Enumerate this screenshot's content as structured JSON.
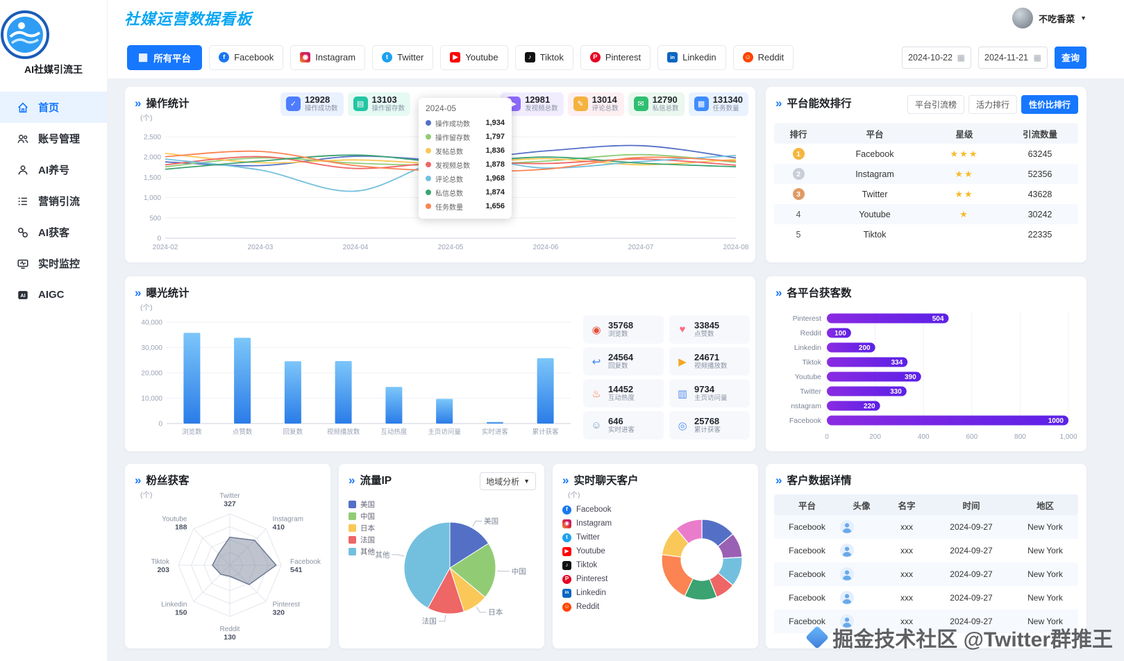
{
  "app": {
    "logo_text": "AI社媒引流王",
    "title": "社媒运营数据看板",
    "user_name": "不吃香菜"
  },
  "sidebar": {
    "items": [
      {
        "label": "首页",
        "icon": "home-icon",
        "active": true
      },
      {
        "label": "账号管理",
        "icon": "users-icon",
        "active": false
      },
      {
        "label": "AI养号",
        "icon": "user-icon",
        "active": false
      },
      {
        "label": "营销引流",
        "icon": "list-icon",
        "active": false
      },
      {
        "label": "AI获客",
        "icon": "link-icon",
        "active": false
      },
      {
        "label": "实时监控",
        "icon": "monitor-icon",
        "active": false
      },
      {
        "label": "AIGC",
        "icon": "aigc-icon",
        "active": false
      }
    ]
  },
  "filters": {
    "all_label": "所有平台",
    "platforms": [
      {
        "name": "Facebook",
        "color": "#1877f2",
        "glyph": "f",
        "shape": "circle"
      },
      {
        "name": "Instagram",
        "color": "#dc2743",
        "gradient": "linear-gradient(45deg,#f09433,#dc2743,#bc1888)",
        "glyph": "◉",
        "shape": "square"
      },
      {
        "name": "Twitter",
        "color": "#1da1f2",
        "glyph": "t",
        "shape": "circle"
      },
      {
        "name": "Youtube",
        "color": "#ff0000",
        "glyph": "▶",
        "shape": "square"
      },
      {
        "name": "Tiktok",
        "color": "#111111",
        "glyph": "♪",
        "shape": "square"
      },
      {
        "name": "Pinterest",
        "color": "#e60023",
        "glyph": "P",
        "shape": "circle"
      },
      {
        "name": "Linkedin",
        "color": "#0a66c2",
        "glyph": "in",
        "shape": "square"
      },
      {
        "name": "Reddit",
        "color": "#ff4500",
        "glyph": "☺",
        "shape": "circle"
      }
    ],
    "date_from": "2024-10-22",
    "date_to": "2024-11-21",
    "search_label": "查询"
  },
  "operation": {
    "title": "操作统计",
    "unit": "(个)",
    "badges": [
      {
        "value": "12928",
        "label": "操作成功数",
        "color": "#4f7dff",
        "bg": "#eaf1ff",
        "glyph": "✓"
      },
      {
        "value": "13103",
        "label": "操作留存数",
        "color": "#23c6a4",
        "bg": "#e6faf4",
        "glyph": "▤"
      },
      {
        "value": "12981",
        "label": "发视频总数",
        "color": "#8f6bff",
        "bg": "#f1edff",
        "glyph": "▶"
      },
      {
        "value": "13014",
        "label": "评论总数",
        "color": "#f4b23e",
        "bg": "#fdeff2",
        "glyph": "✎"
      },
      {
        "value": "12790",
        "label": "私信总数",
        "color": "#2fbf71",
        "bg": "#eaf8f0",
        "glyph": "✉"
      },
      {
        "value": "131340",
        "label": "任务数量",
        "color": "#3f8cff",
        "bg": "#e9f2ff",
        "glyph": "▦"
      }
    ],
    "tooltip": {
      "title": "2024-05",
      "rows": [
        {
          "label": "操作成功数",
          "value": "1,934",
          "color": "#5470c6"
        },
        {
          "label": "操作留存数",
          "value": "1,797",
          "color": "#91cc75"
        },
        {
          "label": "发帖总数",
          "value": "1,836",
          "color": "#fac858"
        },
        {
          "label": "发视频总数",
          "value": "1,878",
          "color": "#ee6666"
        },
        {
          "label": "评论总数",
          "value": "1,968",
          "color": "#73c0de"
        },
        {
          "label": "私信总数",
          "value": "1,874",
          "color": "#3ba272"
        },
        {
          "label": "任务数量",
          "value": "1,656",
          "color": "#fc8452"
        }
      ]
    },
    "chart_data": {
      "type": "line",
      "x": [
        "2024-02",
        "2024-03",
        "2024-04",
        "2024-05",
        "2024-06",
        "2024-07",
        "2024-08"
      ],
      "ylim": [
        0,
        2500
      ],
      "ytick": 500,
      "series": [
        {
          "name": "操作成功数",
          "color": "#5470c6",
          "values": [
            1880,
            1790,
            2020,
            1934,
            2150,
            2280,
            1980
          ]
        },
        {
          "name": "操作留存数",
          "color": "#91cc75",
          "values": [
            1760,
            1980,
            1850,
            1797,
            1900,
            2060,
            1870
          ]
        },
        {
          "name": "发帖总数",
          "color": "#fac858",
          "values": [
            2090,
            1860,
            1930,
            1836,
            1960,
            1810,
            1940
          ]
        },
        {
          "name": "发视频总数",
          "color": "#ee6666",
          "values": [
            1810,
            2010,
            1720,
            1878,
            1840,
            1950,
            1800
          ]
        },
        {
          "name": "评论总数",
          "color": "#73c0de",
          "values": [
            1950,
            1680,
            1160,
            1968,
            1730,
            1890,
            2040
          ]
        },
        {
          "name": "私信总数",
          "color": "#3ba272",
          "values": [
            1700,
            1900,
            2050,
            1874,
            2000,
            1850,
            1760
          ]
        },
        {
          "name": "任务数量",
          "color": "#fc8452",
          "values": [
            2010,
            2140,
            1790,
            1656,
            1700,
            1990,
            1900
          ]
        }
      ]
    }
  },
  "rank": {
    "title": "平台能效排行",
    "tabs": [
      {
        "label": "平台引流榜",
        "active": false
      },
      {
        "label": "活力排行",
        "active": false
      },
      {
        "label": "性价比排行",
        "active": true
      }
    ],
    "header": [
      "排行",
      "平台",
      "星级",
      "引流数量"
    ],
    "rows": [
      {
        "rank": "1",
        "platform": "Facebook",
        "stars": 3,
        "count": "63245"
      },
      {
        "rank": "2",
        "platform": "Instagram",
        "stars": 2,
        "count": "52356"
      },
      {
        "rank": "3",
        "platform": "Twitter",
        "stars": 2,
        "count": "43628"
      },
      {
        "rank": "4",
        "platform": "Youtube",
        "stars": 1,
        "count": "30242"
      },
      {
        "rank": "5",
        "platform": "Tiktok",
        "stars": 0,
        "count": "22335"
      }
    ]
  },
  "exposure": {
    "title": "曝光统计",
    "unit": "(个)",
    "chart_data": {
      "type": "bar",
      "categories": [
        "浏览数",
        "点赞数",
        "回复数",
        "视频播放数",
        "互动热度",
        "主页访问量",
        "实时进客",
        "累计获客"
      ],
      "values": [
        35768,
        33845,
        24564,
        24671,
        14452,
        9734,
        646,
        25768
      ],
      "ylim": [
        0,
        40000
      ],
      "ytick": 10000
    },
    "tiles": [
      {
        "value": "35768",
        "label": "浏览数",
        "glyph": "◉",
        "color": "#e8503a"
      },
      {
        "value": "33845",
        "label": "点赞数",
        "glyph": "♥",
        "color": "#ff6b81"
      },
      {
        "value": "24564",
        "label": "回复数",
        "glyph": "↩",
        "color": "#3b82f6"
      },
      {
        "value": "24671",
        "label": "视频播放数",
        "glyph": "▶",
        "color": "#f5a623"
      },
      {
        "value": "14452",
        "label": "互动热度",
        "glyph": "♨",
        "color": "#ff7043"
      },
      {
        "value": "9734",
        "label": "主页访问量",
        "glyph": "▥",
        "color": "#5a8dee"
      },
      {
        "value": "646",
        "label": "实时进客",
        "glyph": "☺",
        "color": "#7c9cbf"
      },
      {
        "value": "25768",
        "label": "累计获客",
        "glyph": "◎",
        "color": "#4f8df7"
      }
    ]
  },
  "platform_leads": {
    "title": "各平台获客数",
    "chart_data": {
      "type": "hbar",
      "categories": [
        "Pinterest",
        "Reddit",
        "Linkedin",
        "Tiktok",
        "Youtube",
        "Twitter",
        "nstagram",
        "Facebook"
      ],
      "values": [
        504,
        100,
        200,
        334,
        390,
        330,
        220,
        1000
      ],
      "xlim": [
        0,
        1000
      ],
      "xtick": 200,
      "bar_gradient": [
        "#8a2be2",
        "#5b21e6"
      ]
    }
  },
  "fans": {
    "title": "粉丝获客",
    "unit": "(个)",
    "chart_data": {
      "type": "radar",
      "max": 600,
      "axes": [
        {
          "label": "Twitter",
          "value": 327
        },
        {
          "label": "Instagram",
          "value": 410
        },
        {
          "label": "Facebook",
          "value": 541
        },
        {
          "label": "Pinterest",
          "value": 320
        },
        {
          "label": "Reddit",
          "value": 130
        },
        {
          "label": "Linkedin",
          "value": 150
        },
        {
          "label": "Tiktok",
          "value": 203
        },
        {
          "label": "Youtube",
          "value": 188
        }
      ]
    }
  },
  "traffic": {
    "title": "流量IP",
    "select_label": "地域分析",
    "chart_data": {
      "type": "pie",
      "slices": [
        {
          "label": "美国",
          "value": 16,
          "color": "#5470c6"
        },
        {
          "label": "中国",
          "value": 20,
          "color": "#91cc75"
        },
        {
          "label": "日本",
          "value": 9,
          "color": "#fac858"
        },
        {
          "label": "法国",
          "value": 13,
          "color": "#ee6666"
        },
        {
          "label": "其他",
          "value": 42,
          "color": "#73c0de"
        }
      ]
    }
  },
  "chat": {
    "title": "实时聊天客户",
    "unit": "(个)",
    "platforms": [
      "Facebook",
      "Instagram",
      "Twitter",
      "Youtube",
      "Tiktok",
      "Pinterest",
      "Linkedin",
      "Reddit"
    ],
    "chart_data": {
      "type": "donut",
      "slices": [
        {
          "label": "Facebook",
          "value": 14,
          "color": "#5470c6"
        },
        {
          "label": "Instagram",
          "value": 10,
          "color": "#9a60b4"
        },
        {
          "label": "Twitter",
          "value": 12,
          "color": "#73c0de"
        },
        {
          "label": "Youtube",
          "value": 8,
          "color": "#ee6666"
        },
        {
          "label": "Tiktok",
          "value": 13,
          "color": "#3ba272"
        },
        {
          "label": "Pinterest",
          "value": 20,
          "color": "#fc8452"
        },
        {
          "label": "Linkedin",
          "value": 12,
          "color": "#fac858"
        },
        {
          "label": "Reddit",
          "value": 11,
          "color": "#ea7ccc"
        }
      ]
    }
  },
  "customers": {
    "title": "客户数据详情",
    "header": [
      "平台",
      "头像",
      "名字",
      "时间",
      "地区"
    ],
    "rows": [
      {
        "platform": "Facebook",
        "name": "xxx",
        "time": "2024-09-27",
        "region": "New York"
      },
      {
        "platform": "Facebook",
        "name": "xxx",
        "time": "2024-09-27",
        "region": "New York"
      },
      {
        "platform": "Facebook",
        "name": "xxx",
        "time": "2024-09-27",
        "region": "New York"
      },
      {
        "platform": "Facebook",
        "name": "xxx",
        "time": "2024-09-27",
        "region": "New York"
      },
      {
        "platform": "Facebook",
        "name": "xxx",
        "time": "2024-09-27",
        "region": "New York"
      }
    ]
  },
  "watermark": {
    "text": "掘金技术社区 @Twitter群推王"
  }
}
